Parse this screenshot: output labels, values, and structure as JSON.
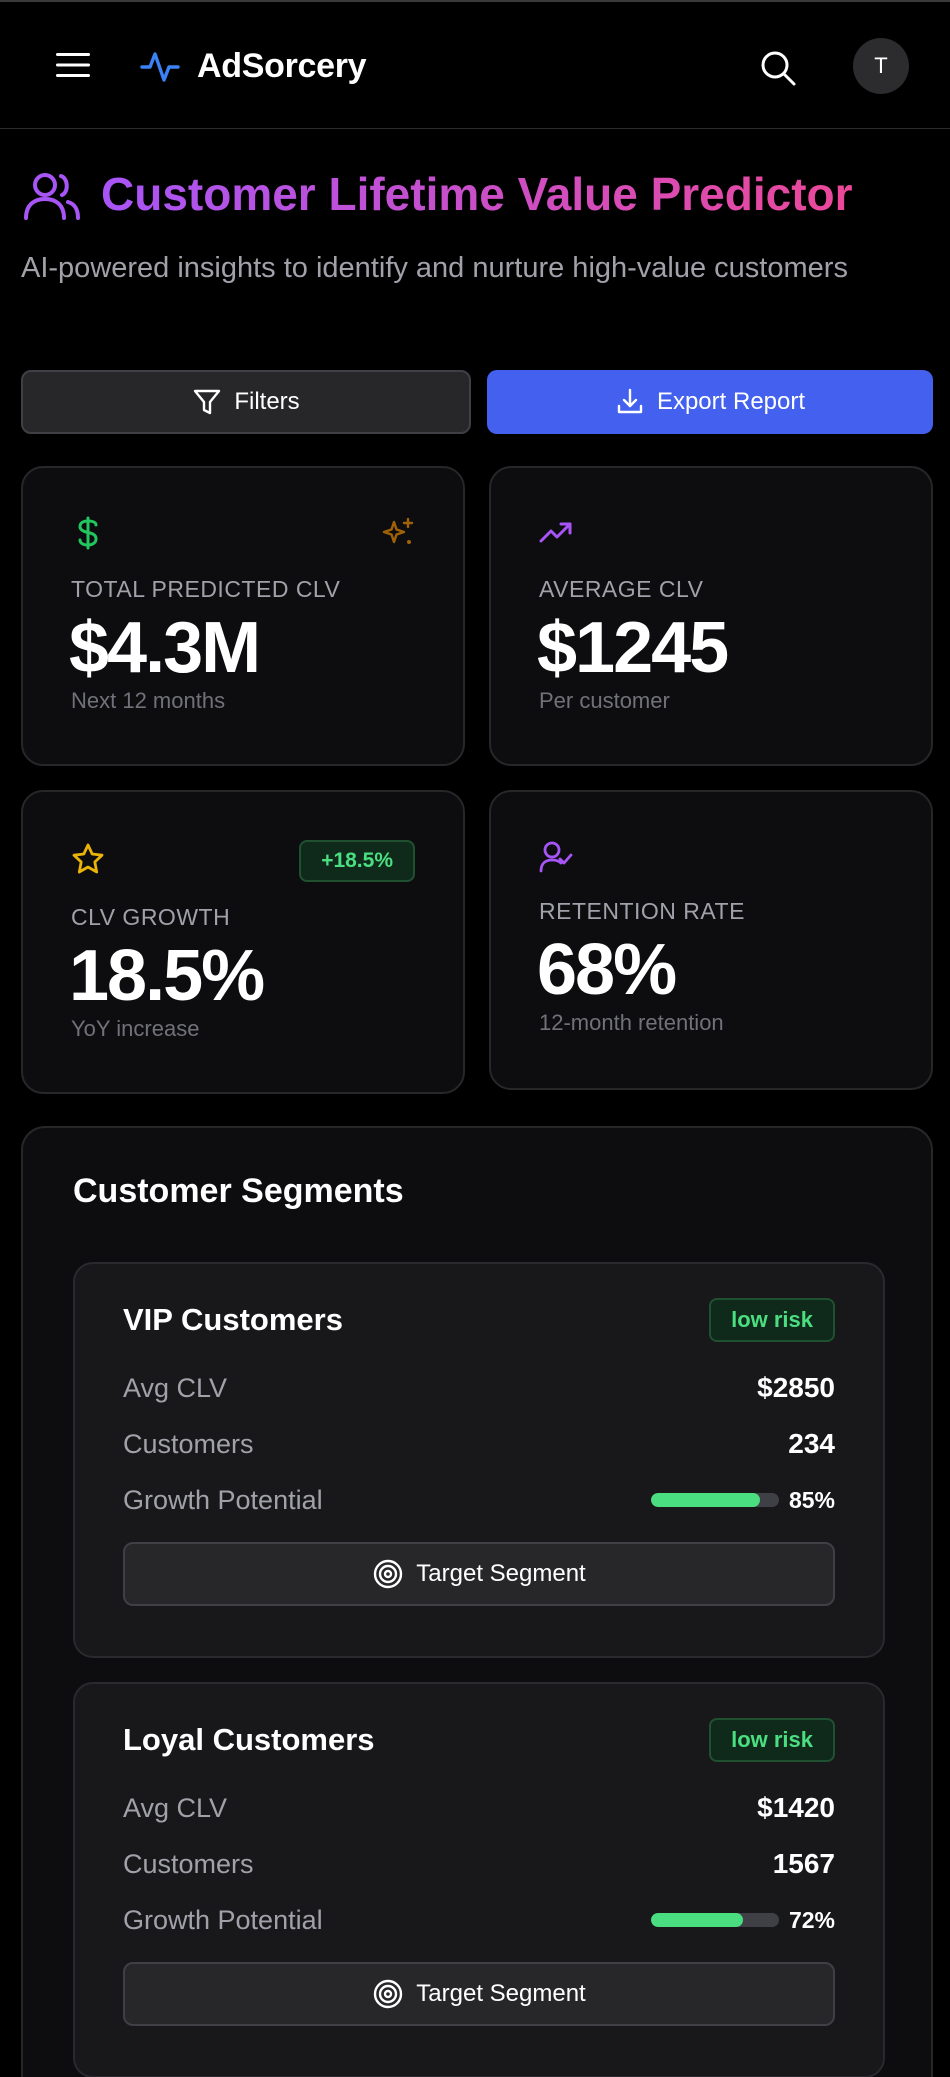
{
  "header": {
    "app_name": "AdSorcery",
    "avatar_initial": "T"
  },
  "page": {
    "title": "Customer Lifetime Value Predictor",
    "subtitle": "AI-powered insights to identify and nurture high-value customers"
  },
  "actions": {
    "filters_label": "Filters",
    "export_label": "Export Report"
  },
  "stats": [
    {
      "label": "TOTAL PREDICTED CLV",
      "value": "$4.3M",
      "sub": "Next 12 months",
      "icon": "dollar-icon"
    },
    {
      "label": "AVERAGE CLV",
      "value": "$1245",
      "sub": "Per customer",
      "icon": "trending-up-icon"
    },
    {
      "label": "CLV GROWTH",
      "value": "18.5%",
      "sub": "YoY increase",
      "badge": "+18.5%",
      "icon": "star-icon"
    },
    {
      "label": "RETENTION RATE",
      "value": "68%",
      "sub": "12-month retention",
      "icon": "user-check-icon"
    }
  ],
  "segments": {
    "title": "Customer Segments",
    "row_labels": {
      "avg_clv": "Avg CLV",
      "customers": "Customers",
      "growth": "Growth Potential"
    },
    "target_label": "Target Segment",
    "items": [
      {
        "name": "VIP Customers",
        "risk": "low risk",
        "avg_clv": "$2850",
        "customers": "234",
        "growth_text": "85%",
        "growth_fraction": 0.85
      },
      {
        "name": "Loyal Customers",
        "risk": "low risk",
        "avg_clv": "$1420",
        "customers": "1567",
        "growth_text": "72%",
        "growth_fraction": 0.72
      }
    ]
  },
  "colors": {
    "accent": "#4361ee",
    "title_gradient_start": "#a855f7",
    "title_gradient_end": "#ec4899",
    "positive": "#4ade80",
    "dollar_icon": "#22c55e",
    "trend_icon": "#a855f7",
    "star_icon": "#eab308",
    "sparkle_icon": "#a16207",
    "logo_icon": "#3b82f6"
  }
}
